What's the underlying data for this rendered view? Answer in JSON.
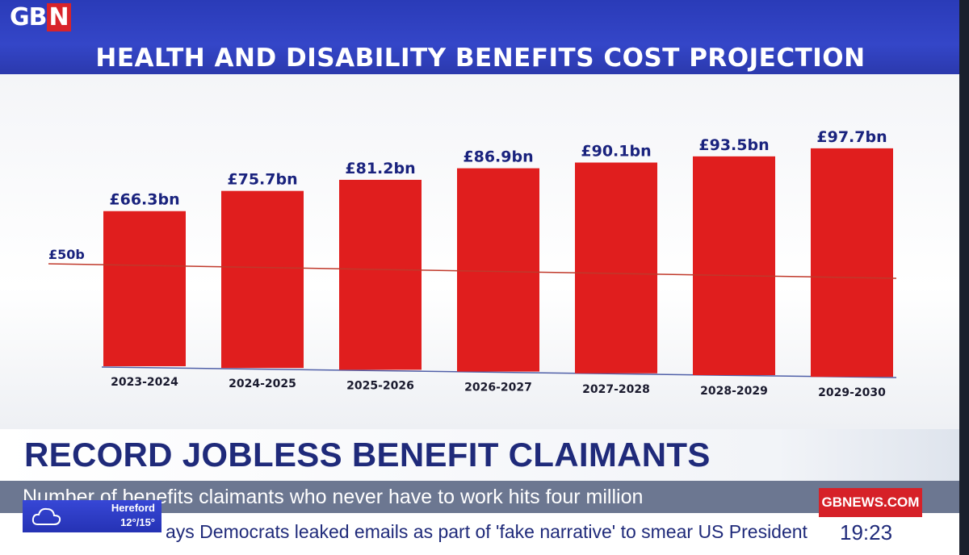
{
  "channel": {
    "logo_text": "GB",
    "logo_accent": "N",
    "site_badge": "GBNEWS.COM"
  },
  "headline": "RECORD JOBLESS BENEFIT CLAIMANTS",
  "subheadline": "Number of benefits claimants who never have to work hits four million",
  "ticker": {
    "text": "ays Democrats leaked emails as part of 'fake narrative' to smear US President",
    "clock": "19:23"
  },
  "weather": {
    "icon": "cloud-icon",
    "location": "Hereford",
    "temperature": "12°/15°"
  },
  "colors": {
    "bar": "#e01e1e",
    "title_bar": "#3446c8",
    "reference_line": "#c0392b",
    "label_text": "#1a237e",
    "badge": "#d62128"
  },
  "chart_data": {
    "type": "bar",
    "title": "HEALTH AND DISABILITY BENEFITS COST PROJECTION",
    "categories": [
      "2023-2024",
      "2024-2025",
      "2025-2026",
      "2026-2027",
      "2027-2028",
      "2028-2029",
      "2029-2030"
    ],
    "values": [
      66.3,
      75.7,
      81.2,
      86.9,
      90.1,
      93.5,
      97.7
    ],
    "data_labels": [
      "£66.3bn",
      "£75.7bn",
      "£81.2bn",
      "£86.9bn",
      "£90.1bn",
      "£93.5bn",
      "£97.7bn"
    ],
    "unit": "£bn",
    "reference_line": {
      "value": 50,
      "label": "£50b"
    },
    "ylim": [
      0,
      100
    ],
    "grid": false,
    "legend": "none"
  }
}
